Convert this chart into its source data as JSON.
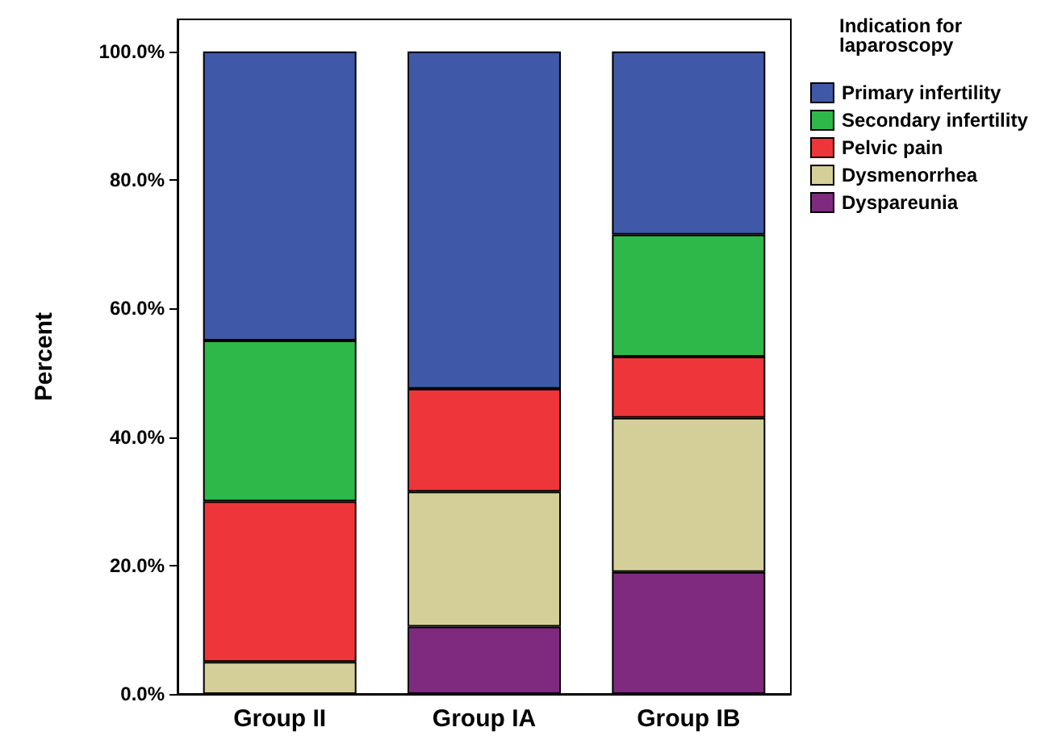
{
  "chart_data": {
    "type": "bar",
    "stacked": true,
    "ylabel": "Percent",
    "legend_title": "Indication for\nlaparoscopy",
    "categories": [
      "Group II",
      "Group IA",
      "Group IB"
    ],
    "series": [
      {
        "name": "Dyspareunia",
        "color": "#7f2a7f",
        "values": [
          0,
          10.5,
          19
        ]
      },
      {
        "name": "Dysmenorrhea",
        "color": "#d4cf98",
        "values": [
          5,
          21,
          24
        ]
      },
      {
        "name": "Pelvic pain",
        "color": "#ee3539",
        "values": [
          25,
          16,
          9.5
        ]
      },
      {
        "name": "Secondary infertility",
        "color": "#2fb84a",
        "values": [
          25,
          0,
          19
        ]
      },
      {
        "name": "Primary infertility",
        "color": "#3f58a8",
        "values": [
          45,
          52.5,
          28.5
        ]
      }
    ],
    "ylim": [
      0,
      105
    ],
    "yticks": [
      {
        "value": 0,
        "label": "0.0%"
      },
      {
        "value": 20,
        "label": "20.0%"
      },
      {
        "value": 40,
        "label": "40.0%"
      },
      {
        "value": 60,
        "label": "60.0%"
      },
      {
        "value": 80,
        "label": "80.0%"
      },
      {
        "value": 100,
        "label": "100.0%"
      }
    ],
    "grid": false,
    "legend": "top right"
  }
}
